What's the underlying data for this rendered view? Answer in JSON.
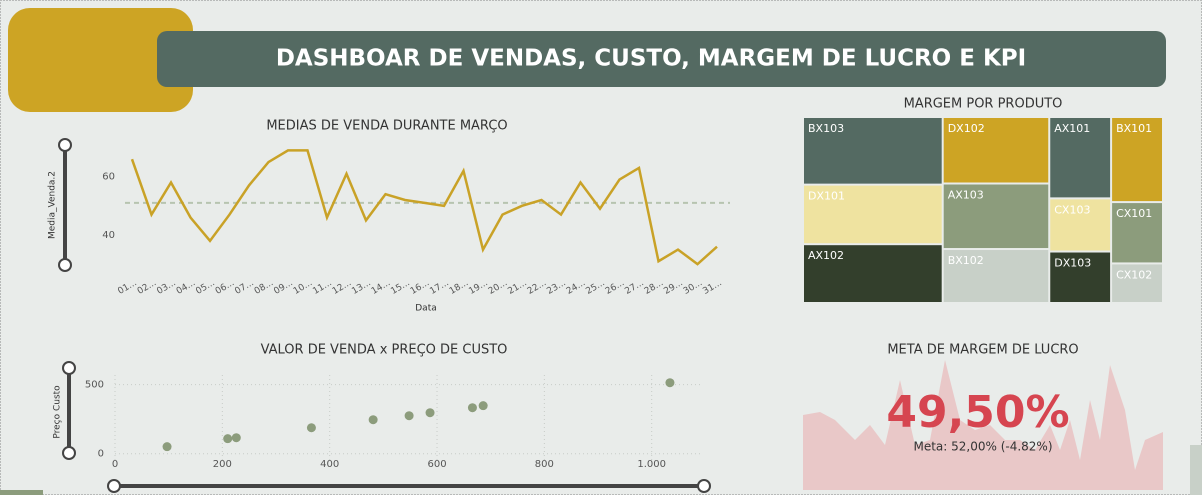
{
  "title": "DASHBOAR DE VENDAS, CUSTO, MARGEM DE LUCRO E KPI",
  "chart_data": [
    {
      "type": "line",
      "title": "MEDIAS DE VENDA DURANTE MARÇO",
      "y_label": "Media_Venda.2",
      "x_label": "Data",
      "categories": [
        "01...",
        "02...",
        "03...",
        "04...",
        "05...",
        "06...",
        "07...",
        "08...",
        "09...",
        "10...",
        "11...",
        "12...",
        "13...",
        "14...",
        "15...",
        "16...",
        "17...",
        "18...",
        "19...",
        "20...",
        "21...",
        "22...",
        "23...",
        "24...",
        "25...",
        "26...",
        "27...",
        "28...",
        "29...",
        "30...",
        "31..."
      ],
      "values": [
        66,
        47,
        58,
        46,
        38,
        47,
        57,
        65,
        69,
        69,
        46,
        61,
        45,
        54,
        52,
        51,
        50,
        62,
        35,
        47,
        50,
        52,
        47,
        58,
        49,
        59,
        63,
        31,
        35,
        30,
        36
      ],
      "color": "#c9a227",
      "reference_line": 51,
      "reference_color": "#b7c4b0",
      "ylim": [
        28,
        76
      ],
      "yticks": [
        40,
        60
      ]
    },
    {
      "type": "treemap",
      "title": "MARGEM POR PRODUTO",
      "categories": [
        "BX103",
        "DX101",
        "AX102",
        "DX102",
        "AX103",
        "BX102",
        "AX101",
        "CX103",
        "DX103",
        "BX101",
        "CX101",
        "CX102"
      ],
      "values": [
        92,
        81,
        80,
        69,
        68,
        56,
        49,
        32,
        31,
        43,
        31,
        20
      ],
      "colors": [
        "#546a62",
        "#efe3a0",
        "#333f2c",
        "#cda424",
        "#8c9c7c",
        "#c8d0c8",
        "#546a62",
        "#efe3a0",
        "#333f2c",
        "#cda424",
        "#8c9c7c",
        "#c8d0c8"
      ]
    },
    {
      "type": "scatter",
      "title": "VALOR DE VENDA x PREÇO DE CUSTO",
      "y_label": "Preço Custo",
      "x": [
        97,
        210,
        226,
        366,
        481,
        548,
        587,
        666,
        686,
        1034
      ],
      "values": [
        51,
        109,
        116,
        188,
        246,
        275,
        297,
        333,
        348,
        514
      ],
      "color": "#8c9c7c",
      "xlim": [
        0,
        1090
      ],
      "ylim": [
        -60,
        570
      ],
      "xticks": [
        0,
        200,
        400,
        600,
        800,
        {
          "value": 1000,
          "label": "1.000"
        }
      ],
      "yticks": [
        0,
        500
      ],
      "grid": true
    },
    {
      "type": "kpi",
      "title": "META DE MARGEM DE LUCRO",
      "value": 49.5,
      "value_label": "49,50%",
      "goal": 52,
      "goal_label": "Meta: 52,00% (-4.82%)",
      "color": "#d64550"
    }
  ]
}
